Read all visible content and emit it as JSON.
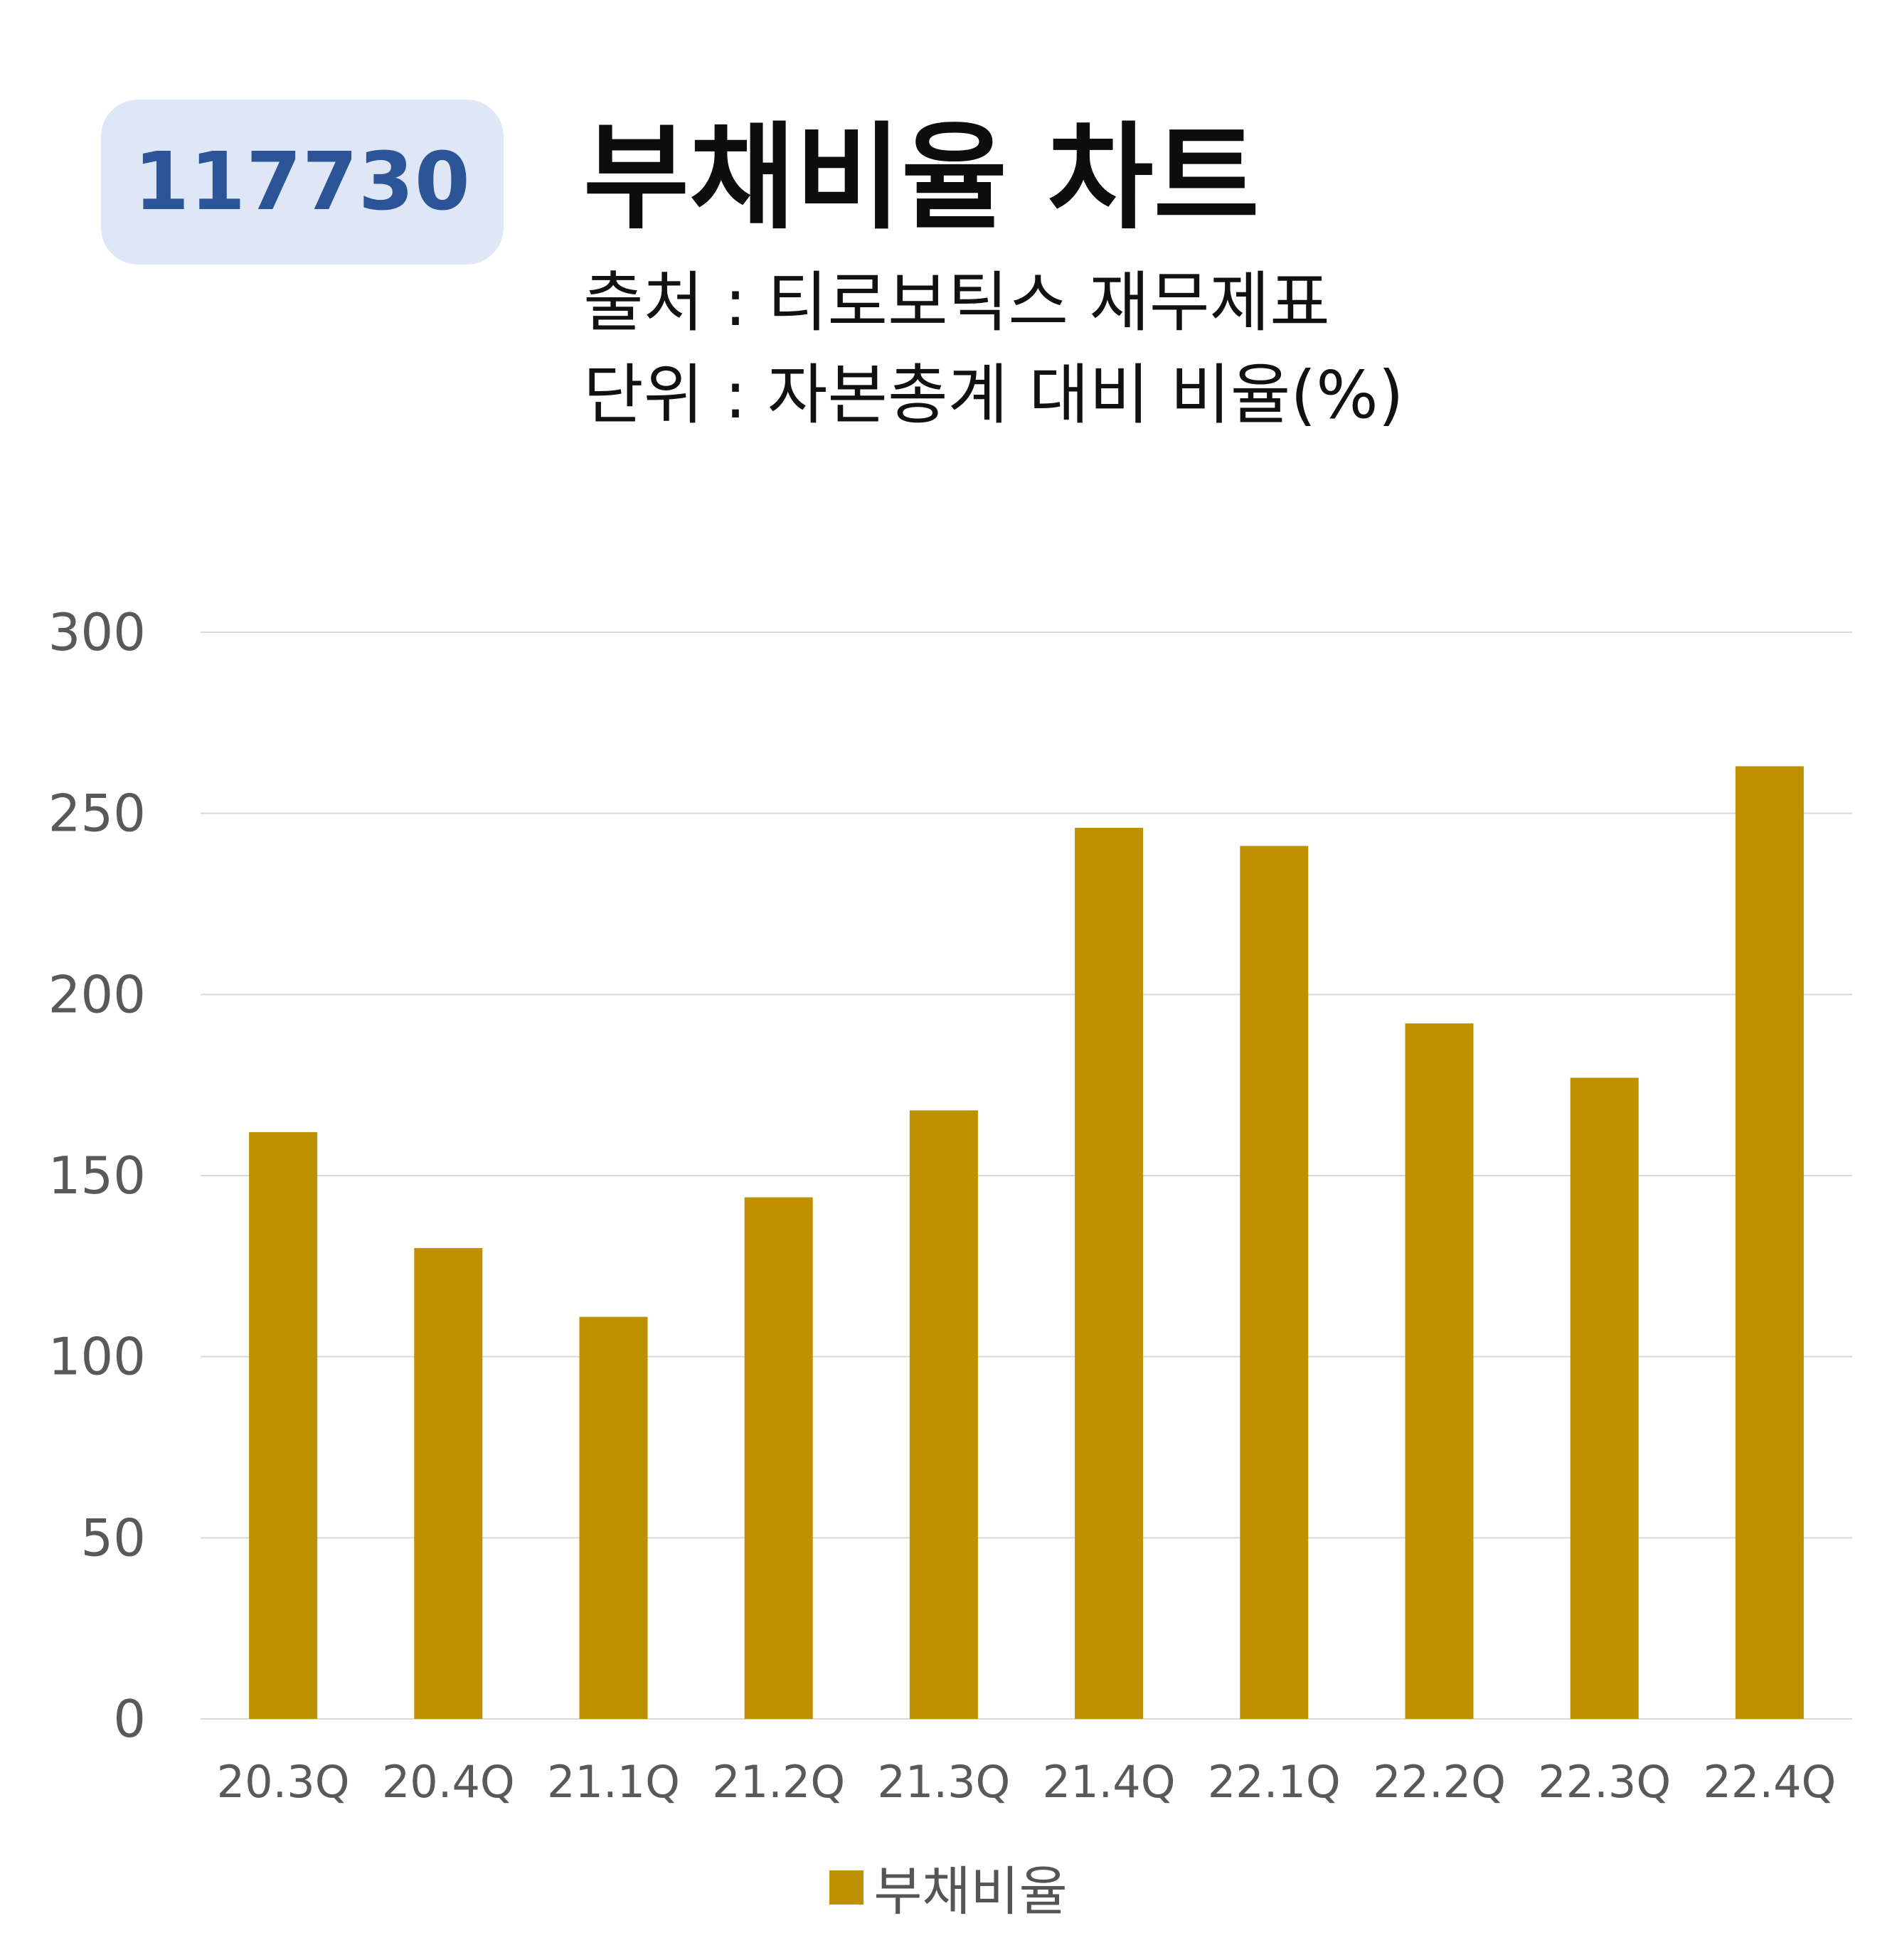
{
  "badge": "117730",
  "title": "부채비율 차트",
  "subtitle_source": "출처 : 티로보틱스 재무제표",
  "subtitle_unit": "단위 : 자본총계 대비 비율(%)",
  "colors": {
    "bar": "#bf9000",
    "badge_bg": "#dfe6f5",
    "badge_text": "#2c5597",
    "grid": "#d9d9d9",
    "tick_text": "#595959"
  },
  "chart_data": {
    "type": "bar",
    "categories": [
      "20.3Q",
      "20.4Q",
      "21.1Q",
      "21.2Q",
      "21.3Q",
      "21.4Q",
      "22.1Q",
      "22.2Q",
      "22.3Q",
      "22.4Q"
    ],
    "series": [
      {
        "name": "부채비율",
        "values": [
          162,
          130,
          111,
          144,
          168,
          246,
          241,
          192,
          177,
          263
        ]
      }
    ],
    "ylim": [
      0,
      300
    ],
    "yticks": [
      0,
      50,
      100,
      150,
      200,
      250,
      300
    ],
    "grid": true,
    "legend": "bottom"
  }
}
